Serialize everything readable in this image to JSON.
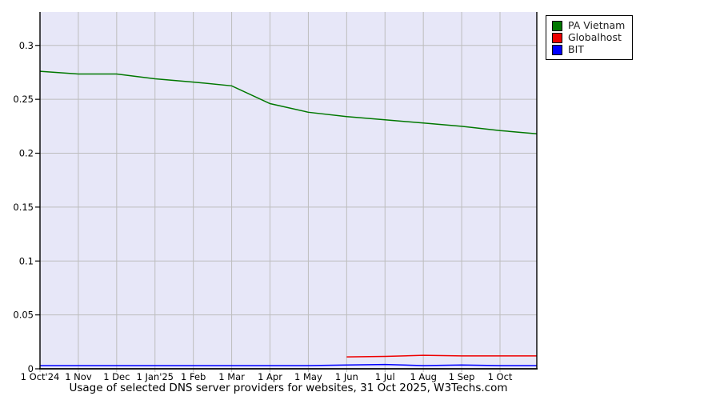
{
  "title": "Usage of selected DNS server providers for websites, 31 Oct 2025, W3Techs.com",
  "chart_data": {
    "type": "line",
    "x_tick_labels": [
      "1 Oct'24",
      "1 Nov",
      "1 Dec",
      "1 Jan'25",
      "1 Feb",
      "1 Mar",
      "1 Apr",
      "1 May",
      "1 Jun",
      "1 Jul",
      "1 Aug",
      "1 Sep",
      "1 Oct"
    ],
    "x_index_max": 12.96,
    "y_tick_values": [
      0,
      0.05,
      0.1,
      0.15,
      0.2,
      0.25,
      0.3
    ],
    "y_tick_labels": [
      "0",
      "0.05",
      "0.1",
      "0.15",
      "0.2",
      "0.25",
      "0.3"
    ],
    "ylim": [
      0,
      0.331
    ],
    "grid": true,
    "legend_position": "outside-top-right",
    "plot_bg": "#e7e7f8",
    "grid_color": "#bdbdbd",
    "axis_color": "#000000",
    "series": [
      {
        "name": "PA Vietnam",
        "color": "#007800",
        "points": [
          [
            0,
            0.276
          ],
          [
            1,
            0.2735
          ],
          [
            2,
            0.2735
          ],
          [
            3,
            0.269
          ],
          [
            4,
            0.266
          ],
          [
            5,
            0.2625
          ],
          [
            6,
            0.246
          ],
          [
            7,
            0.238
          ],
          [
            8,
            0.234
          ],
          [
            9,
            0.231
          ],
          [
            10,
            0.228
          ],
          [
            11,
            0.225
          ],
          [
            12,
            0.221
          ],
          [
            12.96,
            0.218
          ]
        ]
      },
      {
        "name": "Globalhost",
        "color": "#ee0000",
        "points": [
          [
            8,
            0.011
          ],
          [
            9,
            0.0115
          ],
          [
            10,
            0.0125
          ],
          [
            11,
            0.012
          ],
          [
            12,
            0.012
          ],
          [
            12.96,
            0.012
          ]
        ]
      },
      {
        "name": "BIT",
        "color": "#0000ff",
        "points": [
          [
            0,
            0.003
          ],
          [
            1,
            0.003
          ],
          [
            2,
            0.003
          ],
          [
            3,
            0.003
          ],
          [
            4,
            0.003
          ],
          [
            5,
            0.003
          ],
          [
            6,
            0.003
          ],
          [
            7,
            0.003
          ],
          [
            8,
            0.0035
          ],
          [
            9,
            0.004
          ],
          [
            10,
            0.003
          ],
          [
            11,
            0.0035
          ],
          [
            12,
            0.003
          ],
          [
            12.96,
            0.003
          ]
        ]
      }
    ]
  }
}
